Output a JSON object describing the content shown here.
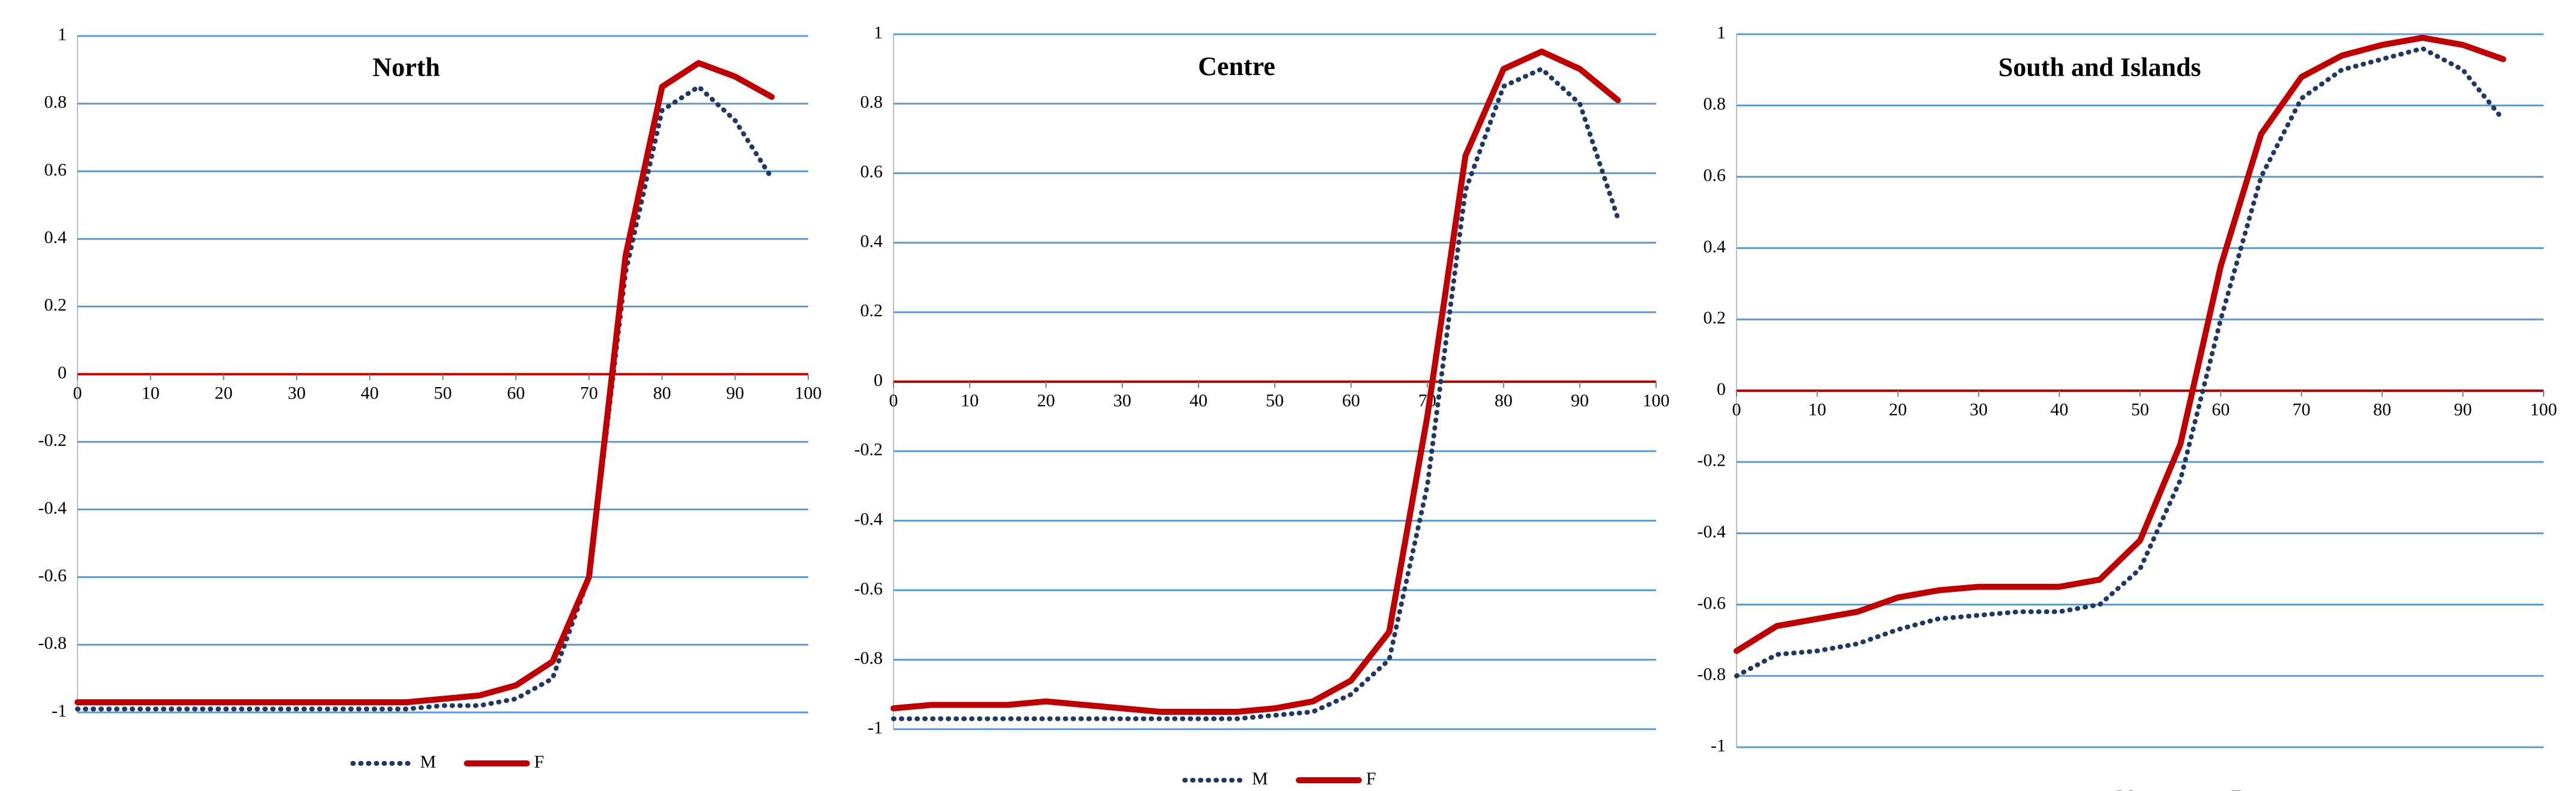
{
  "chart_data": [
    {
      "type": "line",
      "title": "North",
      "x": [
        0,
        5,
        10,
        15,
        20,
        25,
        30,
        35,
        40,
        45,
        50,
        55,
        60,
        65,
        70,
        75,
        80,
        85,
        90,
        95
      ],
      "series": [
        {
          "name": "M",
          "color": "#1f3864",
          "values": [
            -0.99,
            -0.99,
            -0.99,
            -0.99,
            -0.99,
            -0.99,
            -0.99,
            -0.99,
            -0.99,
            -0.99,
            -0.98,
            -0.98,
            -0.96,
            -0.9,
            -0.6,
            0.3,
            0.78,
            0.85,
            0.75,
            0.58
          ]
        },
        {
          "name": "F",
          "color": "#c00000",
          "values": [
            -0.97,
            -0.97,
            -0.97,
            -0.97,
            -0.97,
            -0.97,
            -0.97,
            -0.97,
            -0.97,
            -0.97,
            -0.96,
            -0.95,
            -0.92,
            -0.85,
            -0.6,
            0.35,
            0.85,
            0.92,
            0.88,
            0.82
          ]
        }
      ],
      "xlim": [
        0,
        100
      ],
      "ylim": [
        -1,
        1
      ],
      "xticks": [
        0,
        10,
        20,
        30,
        40,
        50,
        60,
        70,
        80,
        90,
        100
      ],
      "yticks": [
        -1,
        -0.8,
        -0.6,
        -0.4,
        -0.2,
        0,
        0.2,
        0.4,
        0.6,
        0.8,
        1
      ],
      "grid": true
    },
    {
      "type": "line",
      "title": "Centre",
      "x": [
        0,
        5,
        10,
        15,
        20,
        25,
        30,
        35,
        40,
        45,
        50,
        55,
        60,
        65,
        70,
        75,
        80,
        85,
        90,
        95
      ],
      "series": [
        {
          "name": "M",
          "color": "#1f3864",
          "values": [
            -0.97,
            -0.97,
            -0.97,
            -0.97,
            -0.97,
            -0.97,
            -0.97,
            -0.97,
            -0.97,
            -0.97,
            -0.96,
            -0.95,
            -0.9,
            -0.8,
            -0.3,
            0.55,
            0.85,
            0.9,
            0.8,
            0.47
          ]
        },
        {
          "name": "F",
          "color": "#c00000",
          "values": [
            -0.94,
            -0.93,
            -0.93,
            -0.93,
            -0.92,
            -0.93,
            -0.94,
            -0.95,
            -0.95,
            -0.95,
            -0.94,
            -0.92,
            -0.86,
            -0.72,
            -0.1,
            0.65,
            0.9,
            0.95,
            0.9,
            0.81
          ]
        }
      ],
      "xlim": [
        0,
        100
      ],
      "ylim": [
        -1,
        1
      ],
      "xticks": [
        0,
        10,
        20,
        30,
        40,
        50,
        60,
        70,
        80,
        90,
        100
      ],
      "yticks": [
        -1,
        -0.8,
        -0.6,
        -0.4,
        -0.2,
        0,
        0.2,
        0.4,
        0.6,
        0.8,
        1
      ],
      "grid": true
    },
    {
      "type": "line",
      "title": "South and Islands",
      "x": [
        0,
        5,
        10,
        15,
        20,
        25,
        30,
        35,
        40,
        45,
        50,
        55,
        60,
        65,
        70,
        75,
        80,
        85,
        90,
        95
      ],
      "series": [
        {
          "name": "M",
          "color": "#1f3864",
          "values": [
            -0.8,
            -0.74,
            -0.73,
            -0.71,
            -0.67,
            -0.64,
            -0.63,
            -0.62,
            -0.62,
            -0.6,
            -0.5,
            -0.25,
            0.2,
            0.6,
            0.82,
            0.9,
            0.93,
            0.96,
            0.9,
            0.76
          ]
        },
        {
          "name": "F",
          "color": "#c00000",
          "values": [
            -0.73,
            -0.66,
            -0.64,
            -0.62,
            -0.58,
            -0.56,
            -0.55,
            -0.55,
            -0.55,
            -0.53,
            -0.42,
            -0.15,
            0.35,
            0.72,
            0.88,
            0.94,
            0.97,
            0.99,
            0.97,
            0.93
          ]
        }
      ],
      "xlim": [
        0,
        100
      ],
      "ylim": [
        -1,
        1
      ],
      "xticks": [
        0,
        10,
        20,
        30,
        40,
        50,
        60,
        70,
        80,
        90,
        100
      ],
      "yticks": [
        -1,
        -0.8,
        -0.6,
        -0.4,
        -0.2,
        0,
        0.2,
        0.4,
        0.6,
        0.8,
        1
      ],
      "grid": true
    }
  ]
}
